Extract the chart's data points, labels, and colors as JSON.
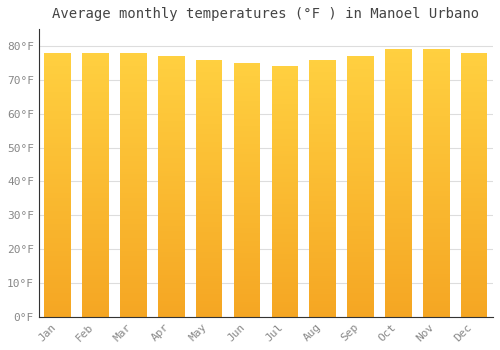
{
  "title": "Average monthly temperatures (°F ) in Manoel Urbano",
  "months": [
    "Jan",
    "Feb",
    "Mar",
    "Apr",
    "May",
    "Jun",
    "Jul",
    "Aug",
    "Sep",
    "Oct",
    "Nov",
    "Dec"
  ],
  "values": [
    78,
    78,
    78,
    77,
    76,
    75,
    74,
    76,
    77,
    79,
    79,
    78
  ],
  "bar_color_bottom": "#F5A623",
  "bar_color_top": "#FFD040",
  "background_color": "#FFFFFF",
  "plot_bg_color": "#FFFFFF",
  "ylim": [
    0,
    85
  ],
  "yticks": [
    0,
    10,
    20,
    30,
    40,
    50,
    60,
    70,
    80
  ],
  "ytick_labels": [
    "0°F",
    "10°F",
    "20°F",
    "30°F",
    "40°F",
    "50°F",
    "60°F",
    "70°F",
    "80°F"
  ],
  "title_fontsize": 10,
  "tick_fontsize": 8,
  "grid_color": "#DDDDDD",
  "border_color": "#333333",
  "bar_width": 0.7
}
